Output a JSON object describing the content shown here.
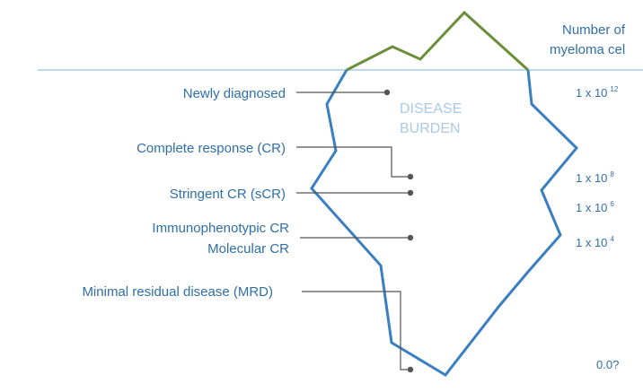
{
  "header": {
    "title_line1": "Number of",
    "title_line2": "myeloma cel"
  },
  "burden": {
    "line1": "DISEASE",
    "line2": "BURDEN"
  },
  "levels": [
    {
      "label": "Newly diagnosed"
    },
    {
      "label": "Complete   response (CR)"
    },
    {
      "label": "Stringent CR (sCR)"
    },
    {
      "label": "Immunophenotypic  CR"
    },
    {
      "label": "Molecular  CR"
    },
    {
      "label": "Minimal residual disease (MRD)"
    }
  ],
  "cell_counts": [
    {
      "base": "1 x 10",
      "exp": "12"
    },
    {
      "base": "1 x 10",
      "exp": "8"
    },
    {
      "base": "1 x 10",
      "exp": "6"
    },
    {
      "base": "1 x 10",
      "exp": "4"
    },
    {
      "base": "0.0?",
      "exp": ""
    }
  ],
  "colors": {
    "outline": "#3a7fc1",
    "tip": "#6b8e3a",
    "waterline": "#a9cbe8",
    "text": "#2f6fa8",
    "connector": "#555555"
  }
}
